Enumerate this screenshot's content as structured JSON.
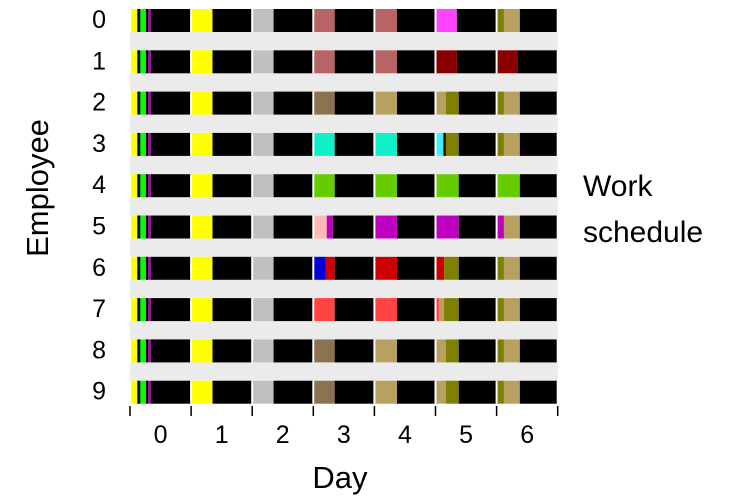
{
  "chart_data": {
    "type": "heatmap",
    "xlabel": "Day",
    "ylabel": "Employee",
    "side_label_line1": "Work",
    "side_label_line2": "schedule",
    "days": [
      "0",
      "1",
      "2",
      "3",
      "4",
      "5",
      "6"
    ],
    "employees": [
      "0",
      "1",
      "2",
      "3",
      "4",
      "5",
      "6",
      "7",
      "8",
      "9"
    ],
    "colors": {
      "night": "#000000",
      "yellow": "#ffff00",
      "gray": "#c0c0c0",
      "green": "#00ff00",
      "purple": "#aa00aa",
      "rose": "#b86464",
      "magenta": "#ff44ff",
      "maroon": "#880000",
      "brown": "#8b7350",
      "tan": "#b8a060",
      "olive": "#808000",
      "cyan": "#10f0c8",
      "lightcyan": "#40f0ff",
      "lime": "#66cc00",
      "pink": "#ffb8b8",
      "violet": "#c000c0",
      "blue": "#0000dd",
      "red": "#cc0000",
      "coral": "#ff4444",
      "band": "#ebebeb"
    },
    "common_segments": [
      {
        "start": 0.0,
        "end": 0.02,
        "color": "yellow"
      },
      {
        "start": 0.02,
        "end": 0.12,
        "color": "yellow"
      },
      {
        "start": 0.12,
        "end": 0.17,
        "color": "night"
      },
      {
        "start": 0.17,
        "end": 0.26,
        "color": "green"
      },
      {
        "start": 0.26,
        "end": 0.3,
        "color": "night"
      },
      {
        "start": 0.3,
        "end": 0.34,
        "color": "purple"
      },
      {
        "start": 0.34,
        "end": 1.0,
        "color": "night"
      },
      {
        "start": 1.0,
        "end": 1.35,
        "color": "yellow"
      },
      {
        "start": 1.35,
        "end": 2.0,
        "color": "night"
      },
      {
        "start": 2.0,
        "end": 2.35,
        "color": "gray"
      },
      {
        "start": 2.35,
        "end": 3.0,
        "color": "night"
      }
    ],
    "employee_segments": [
      [
        {
          "start": 3.0,
          "end": 3.35,
          "color": "rose"
        },
        {
          "start": 3.35,
          "end": 4.0,
          "color": "night"
        },
        {
          "start": 4.0,
          "end": 4.37,
          "color": "rose"
        },
        {
          "start": 4.37,
          "end": 5.0,
          "color": "night"
        },
        {
          "start": 5.0,
          "end": 5.35,
          "color": "magenta"
        },
        {
          "start": 5.35,
          "end": 6.0,
          "color": "night"
        },
        {
          "start": 6.0,
          "end": 6.12,
          "color": "olive"
        },
        {
          "start": 6.12,
          "end": 6.38,
          "color": "tan"
        },
        {
          "start": 6.38,
          "end": 7.0,
          "color": "night"
        }
      ],
      [
        {
          "start": 3.0,
          "end": 3.35,
          "color": "rose"
        },
        {
          "start": 3.35,
          "end": 4.0,
          "color": "night"
        },
        {
          "start": 4.0,
          "end": 4.37,
          "color": "rose"
        },
        {
          "start": 4.37,
          "end": 5.0,
          "color": "night"
        },
        {
          "start": 5.0,
          "end": 5.35,
          "color": "maroon"
        },
        {
          "start": 5.35,
          "end": 6.0,
          "color": "night"
        },
        {
          "start": 6.0,
          "end": 6.35,
          "color": "maroon"
        },
        {
          "start": 6.35,
          "end": 7.0,
          "color": "night"
        }
      ],
      [
        {
          "start": 3.0,
          "end": 3.35,
          "color": "brown"
        },
        {
          "start": 3.35,
          "end": 4.0,
          "color": "night"
        },
        {
          "start": 4.0,
          "end": 4.37,
          "color": "tan"
        },
        {
          "start": 4.37,
          "end": 5.0,
          "color": "night"
        },
        {
          "start": 5.0,
          "end": 5.17,
          "color": "tan"
        },
        {
          "start": 5.17,
          "end": 5.38,
          "color": "olive"
        },
        {
          "start": 5.38,
          "end": 6.0,
          "color": "night"
        },
        {
          "start": 6.0,
          "end": 6.12,
          "color": "olive"
        },
        {
          "start": 6.12,
          "end": 6.38,
          "color": "tan"
        },
        {
          "start": 6.38,
          "end": 7.0,
          "color": "night"
        }
      ],
      [
        {
          "start": 3.0,
          "end": 3.35,
          "color": "cyan"
        },
        {
          "start": 3.35,
          "end": 4.0,
          "color": "night"
        },
        {
          "start": 4.0,
          "end": 4.37,
          "color": "cyan"
        },
        {
          "start": 4.37,
          "end": 5.0,
          "color": "night"
        },
        {
          "start": 5.0,
          "end": 5.13,
          "color": "lightcyan"
        },
        {
          "start": 5.13,
          "end": 5.17,
          "color": "night"
        },
        {
          "start": 5.17,
          "end": 5.38,
          "color": "olive"
        },
        {
          "start": 5.38,
          "end": 6.0,
          "color": "night"
        },
        {
          "start": 6.0,
          "end": 6.12,
          "color": "olive"
        },
        {
          "start": 6.12,
          "end": 6.38,
          "color": "tan"
        },
        {
          "start": 6.38,
          "end": 7.0,
          "color": "night"
        }
      ],
      [
        {
          "start": 3.0,
          "end": 3.35,
          "color": "lime"
        },
        {
          "start": 3.35,
          "end": 4.0,
          "color": "night"
        },
        {
          "start": 4.0,
          "end": 4.37,
          "color": "lime"
        },
        {
          "start": 4.37,
          "end": 5.0,
          "color": "night"
        },
        {
          "start": 5.0,
          "end": 5.38,
          "color": "lime"
        },
        {
          "start": 5.38,
          "end": 6.0,
          "color": "night"
        },
        {
          "start": 6.0,
          "end": 6.38,
          "color": "lime"
        },
        {
          "start": 6.38,
          "end": 7.0,
          "color": "night"
        }
      ],
      [
        {
          "start": 3.0,
          "end": 3.22,
          "color": "pink"
        },
        {
          "start": 3.22,
          "end": 3.32,
          "color": "violet"
        },
        {
          "start": 3.32,
          "end": 4.0,
          "color": "night"
        },
        {
          "start": 4.0,
          "end": 4.37,
          "color": "violet"
        },
        {
          "start": 4.37,
          "end": 5.0,
          "color": "night"
        },
        {
          "start": 5.0,
          "end": 5.38,
          "color": "violet"
        },
        {
          "start": 5.38,
          "end": 6.0,
          "color": "night"
        },
        {
          "start": 6.0,
          "end": 6.12,
          "color": "violet"
        },
        {
          "start": 6.12,
          "end": 6.38,
          "color": "tan"
        },
        {
          "start": 6.38,
          "end": 7.0,
          "color": "night"
        }
      ],
      [
        {
          "start": 3.0,
          "end": 3.2,
          "color": "blue"
        },
        {
          "start": 3.2,
          "end": 3.35,
          "color": "red"
        },
        {
          "start": 3.35,
          "end": 4.0,
          "color": "night"
        },
        {
          "start": 4.0,
          "end": 4.37,
          "color": "red"
        },
        {
          "start": 4.37,
          "end": 5.0,
          "color": "night"
        },
        {
          "start": 5.0,
          "end": 5.14,
          "color": "red"
        },
        {
          "start": 5.14,
          "end": 5.38,
          "color": "olive"
        },
        {
          "start": 5.38,
          "end": 6.0,
          "color": "night"
        },
        {
          "start": 6.0,
          "end": 6.12,
          "color": "olive"
        },
        {
          "start": 6.12,
          "end": 6.38,
          "color": "tan"
        },
        {
          "start": 6.38,
          "end": 7.0,
          "color": "night"
        }
      ],
      [
        {
          "start": 3.0,
          "end": 3.35,
          "color": "coral"
        },
        {
          "start": 3.35,
          "end": 4.0,
          "color": "night"
        },
        {
          "start": 4.0,
          "end": 4.37,
          "color": "coral"
        },
        {
          "start": 4.37,
          "end": 5.0,
          "color": "night"
        },
        {
          "start": 5.0,
          "end": 5.06,
          "color": "coral"
        },
        {
          "start": 5.06,
          "end": 5.14,
          "color": "tan"
        },
        {
          "start": 5.14,
          "end": 5.38,
          "color": "olive"
        },
        {
          "start": 5.38,
          "end": 6.0,
          "color": "night"
        },
        {
          "start": 6.0,
          "end": 6.12,
          "color": "olive"
        },
        {
          "start": 6.12,
          "end": 6.38,
          "color": "tan"
        },
        {
          "start": 6.38,
          "end": 7.0,
          "color": "night"
        }
      ],
      [
        {
          "start": 3.0,
          "end": 3.35,
          "color": "brown"
        },
        {
          "start": 3.35,
          "end": 4.0,
          "color": "night"
        },
        {
          "start": 4.0,
          "end": 4.37,
          "color": "tan"
        },
        {
          "start": 4.37,
          "end": 5.0,
          "color": "night"
        },
        {
          "start": 5.0,
          "end": 5.17,
          "color": "tan"
        },
        {
          "start": 5.17,
          "end": 5.38,
          "color": "olive"
        },
        {
          "start": 5.38,
          "end": 6.0,
          "color": "night"
        },
        {
          "start": 6.0,
          "end": 6.12,
          "color": "olive"
        },
        {
          "start": 6.12,
          "end": 6.38,
          "color": "tan"
        },
        {
          "start": 6.38,
          "end": 7.0,
          "color": "night"
        }
      ],
      [
        {
          "start": 3.0,
          "end": 3.35,
          "color": "brown"
        },
        {
          "start": 3.35,
          "end": 4.0,
          "color": "night"
        },
        {
          "start": 4.0,
          "end": 4.37,
          "color": "tan"
        },
        {
          "start": 4.37,
          "end": 5.0,
          "color": "night"
        },
        {
          "start": 5.0,
          "end": 5.17,
          "color": "tan"
        },
        {
          "start": 5.17,
          "end": 5.38,
          "color": "olive"
        },
        {
          "start": 5.38,
          "end": 6.0,
          "color": "night"
        },
        {
          "start": 6.0,
          "end": 6.12,
          "color": "olive"
        },
        {
          "start": 6.12,
          "end": 6.38,
          "color": "tan"
        },
        {
          "start": 6.38,
          "end": 7.0,
          "color": "night"
        }
      ]
    ],
    "xlim": [
      0,
      7
    ],
    "grid": false,
    "legend": "none"
  }
}
